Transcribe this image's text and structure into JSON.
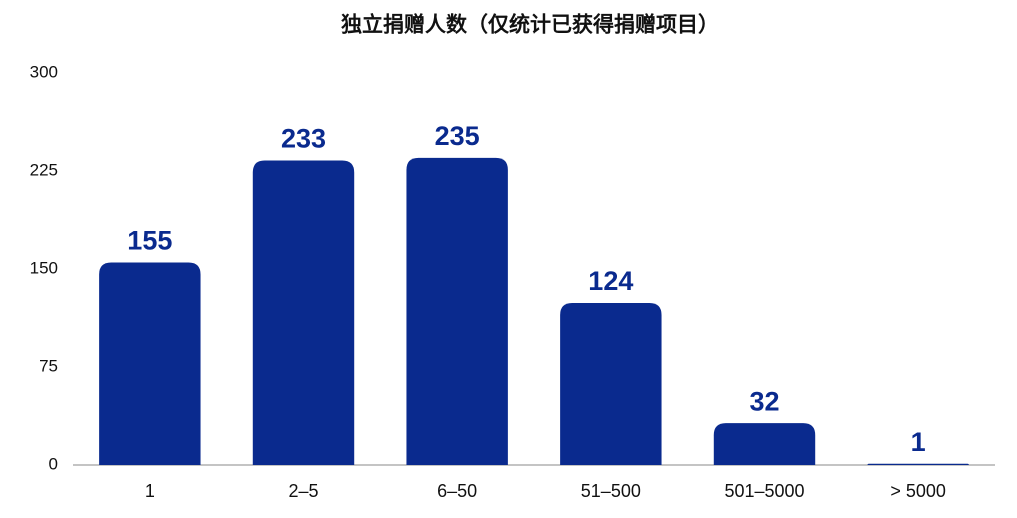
{
  "chart_data": {
    "type": "bar",
    "title": "独立捐赠人数（仅统计已获得捐赠项目）",
    "categories": [
      "1",
      "2–5",
      "6–50",
      "51–500",
      "501–5000",
      "> 5000"
    ],
    "values": [
      155,
      233,
      235,
      124,
      32,
      1
    ],
    "color": "#0a2a8e",
    "ylim": [
      0,
      300
    ],
    "yticks": [
      0,
      75,
      150,
      225,
      300
    ],
    "grid": false
  }
}
